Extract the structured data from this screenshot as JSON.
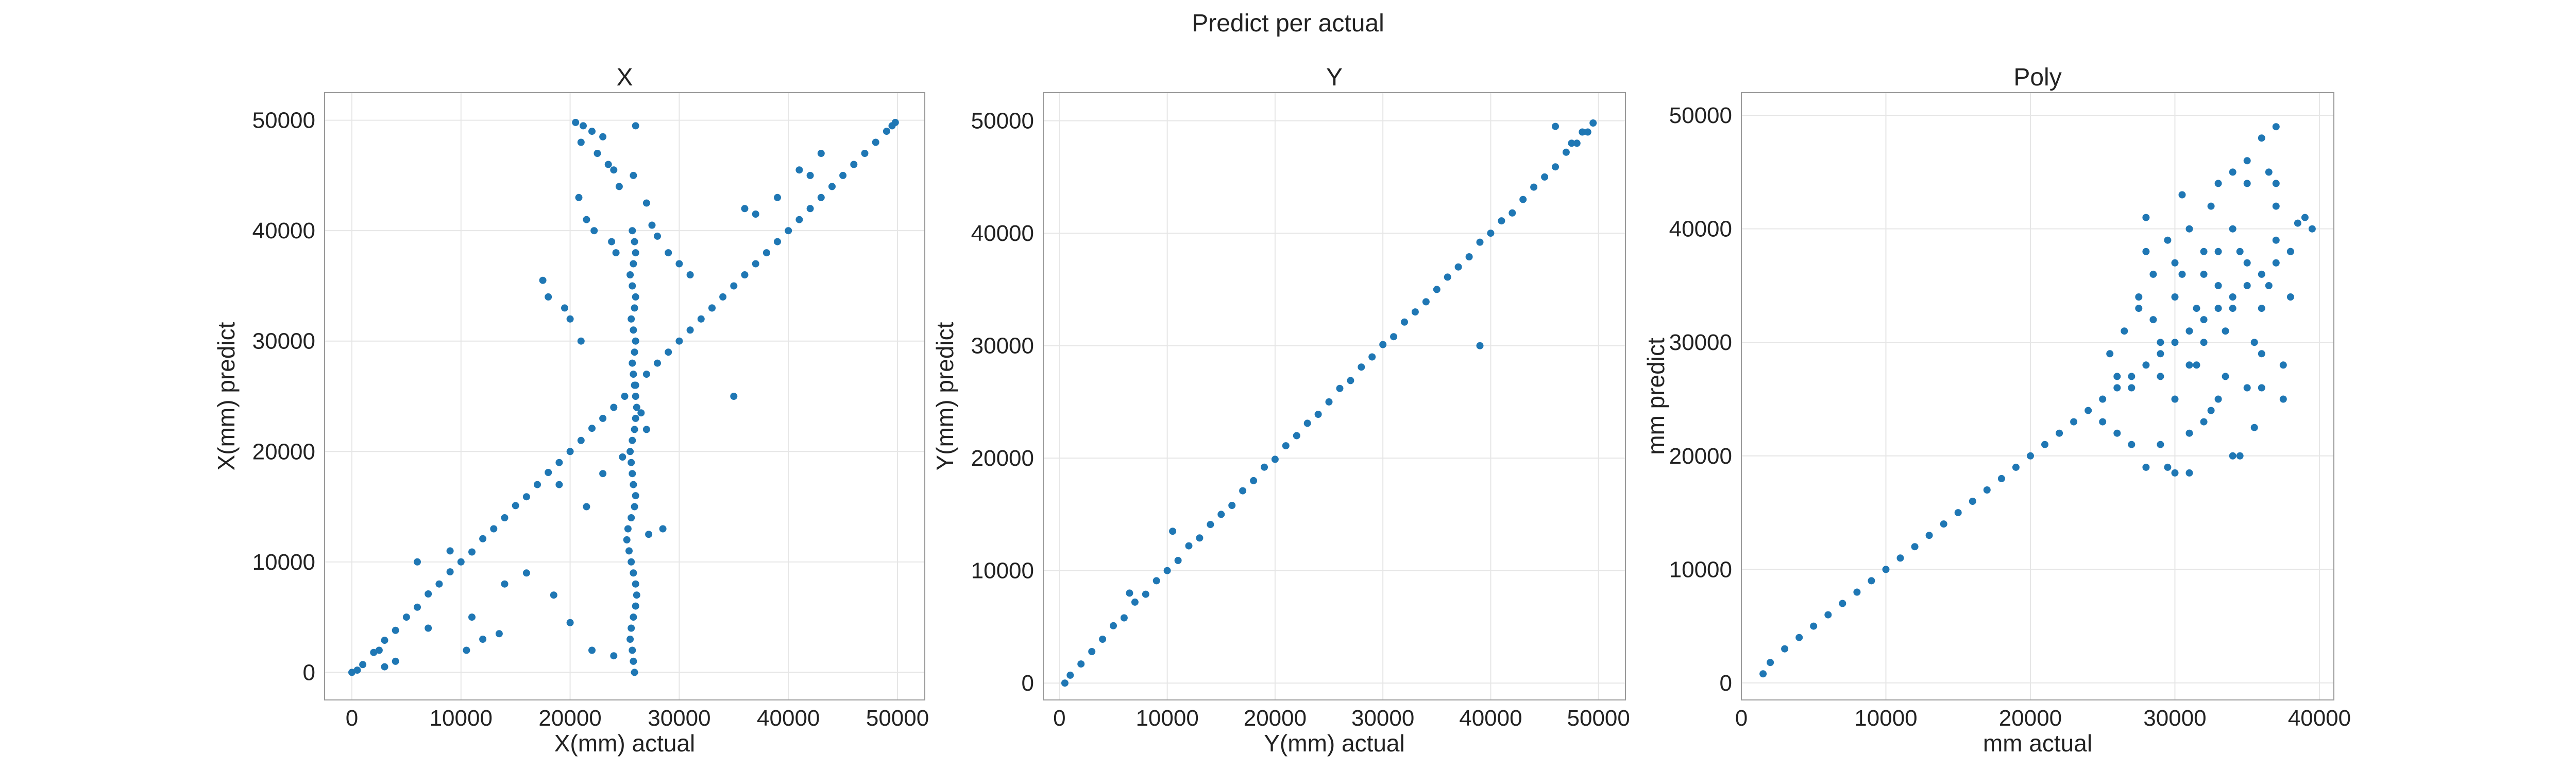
{
  "figure": {
    "suptitle": "Predict per actual",
    "point_color": "#1f77b4"
  },
  "chart_data": [
    {
      "type": "scatter",
      "title": "X",
      "xlabel": "X(mm) actual",
      "ylabel": "X(mm) predict",
      "xlim": [
        -2500,
        52500
      ],
      "ylim": [
        -2500,
        52500
      ],
      "xticks": [
        0,
        10000,
        20000,
        30000,
        40000,
        50000
      ],
      "yticks": [
        0,
        10000,
        20000,
        30000,
        40000,
        50000
      ],
      "grid": true,
      "series": [
        {
          "x": [
            0,
            500,
            1000,
            2000,
            3000,
            4000,
            5000,
            6000,
            7000,
            8000,
            9000,
            10000,
            11000,
            12000,
            13000,
            14000,
            15000,
            16000,
            17000,
            18000,
            19000,
            20000,
            21000,
            22000,
            23000,
            24000,
            25000,
            26000,
            27000,
            28000,
            29000,
            30000,
            31000,
            32000,
            33000,
            34000,
            35000,
            36000,
            37000,
            38000,
            39000,
            40000,
            41000,
            42000,
            43000,
            44000,
            45000,
            46000,
            47000,
            48000,
            49000,
            49500,
            49800
          ],
          "y": [
            0,
            200,
            700,
            1800,
            2900,
            3800,
            5000,
            5900,
            7100,
            8000,
            9100,
            10000,
            10900,
            12100,
            13000,
            14000,
            15100,
            15900,
            17000,
            18100,
            19000,
            20000,
            21000,
            22100,
            23000,
            24000,
            25000,
            26000,
            27000,
            28000,
            29000,
            30000,
            31000,
            32000,
            33000,
            34000,
            35000,
            36000,
            37000,
            38000,
            39000,
            40000,
            41000,
            42000,
            43000,
            44000,
            45000,
            46000,
            47000,
            48000,
            49000,
            49500,
            49800
          ]
        },
        {
          "x": [
            25900,
            25800,
            25700,
            25500,
            25600,
            25800,
            26000,
            26100,
            26000,
            25800,
            25600,
            25400,
            25200,
            25300,
            25600,
            25900,
            26000,
            25800,
            25700,
            25600,
            25500,
            25700,
            25900,
            26000,
            26100,
            26000,
            25900,
            25800,
            25700,
            25900,
            26000,
            25800,
            25600,
            25900,
            26000,
            25700,
            25500,
            25800,
            26000,
            25900,
            25700,
            25800,
            26000
          ],
          "y": [
            0,
            1000,
            2000,
            3000,
            4000,
            5000,
            6000,
            7000,
            8000,
            9000,
            10000,
            11000,
            12000,
            13000,
            14000,
            15000,
            16000,
            17000,
            18000,
            19000,
            20000,
            21000,
            22000,
            23000,
            24000,
            25000,
            26000,
            27000,
            28000,
            29000,
            30000,
            31000,
            32000,
            33000,
            34000,
            35000,
            36000,
            37000,
            38000,
            39000,
            40000,
            45000,
            49500
          ]
        },
        {
          "x": [
            20500,
            21200,
            22000,
            23000,
            21000,
            22500,
            23500,
            24000,
            24500,
            20800,
            21500,
            22200,
            23800,
            24200,
            17500,
            18000,
            19500,
            20000,
            21000,
            27000,
            27500,
            28000,
            29000,
            30000,
            31000,
            33000,
            35000,
            36000,
            37000,
            39000,
            41000,
            42000,
            20000,
            22000,
            24000,
            12000,
            13500,
            11000,
            10500,
            14000,
            6000,
            7000,
            4000,
            3000,
            2500,
            9000,
            16000,
            18500,
            19000,
            21500,
            23000,
            24800,
            27200,
            28500,
            43000,
            27000,
            26500
          ],
          "y": [
            49800,
            49500,
            49000,
            48500,
            48000,
            47000,
            46000,
            45500,
            44000,
            43000,
            41000,
            40000,
            39000,
            38000,
            35500,
            34000,
            33000,
            32000,
            30000,
            42500,
            40500,
            39500,
            38000,
            37000,
            36000,
            33000,
            25000,
            42000,
            41500,
            43000,
            45500,
            45000,
            4500,
            2000,
            1500,
            3000,
            3500,
            5000,
            2000,
            8000,
            10000,
            4000,
            1000,
            500,
            2000,
            11000,
            9000,
            7000,
            17000,
            15000,
            18000,
            19500,
            12500,
            13000,
            47000,
            22000,
            23500
          ]
        }
      ]
    },
    {
      "type": "scatter",
      "title": "Y",
      "xlabel": "Y(mm) actual",
      "ylabel": "Y(mm) predict",
      "xlim": [
        -1500,
        52500
      ],
      "ylim": [
        -1500,
        52500
      ],
      "xticks": [
        0,
        10000,
        20000,
        30000,
        40000,
        50000
      ],
      "yticks": [
        0,
        10000,
        20000,
        30000,
        40000,
        50000
      ],
      "grid": true,
      "series": [
        {
          "x": [
            500,
            1000,
            2000,
            3000,
            4000,
            5000,
            6000,
            7000,
            8000,
            9000,
            10000,
            11000,
            12000,
            13000,
            14000,
            15000,
            16000,
            17000,
            18000,
            19000,
            20000,
            21000,
            22000,
            23000,
            24000,
            25000,
            26000,
            27000,
            28000,
            29000,
            30000,
            31000,
            32000,
            33000,
            34000,
            35000,
            36000,
            37000,
            38000,
            39000,
            40000,
            41000,
            42000,
            43000,
            44000,
            45000,
            46000,
            47000,
            48000,
            49000,
            49500
          ],
          "y": [
            0,
            700,
            1700,
            2800,
            3900,
            5100,
            5800,
            7200,
            7900,
            9100,
            10000,
            10900,
            12200,
            12900,
            14100,
            15000,
            15800,
            17100,
            18000,
            19200,
            19900,
            21100,
            22000,
            23100,
            23900,
            25000,
            26200,
            26900,
            28100,
            29000,
            30100,
            30800,
            32100,
            33000,
            33900,
            35000,
            36100,
            37000,
            37900,
            39200,
            40000,
            41100,
            41800,
            43000,
            44100,
            45000,
            45900,
            47200,
            48000,
            49000,
            49800
          ]
        },
        {
          "x": [
            39000,
            10500,
            6500,
            46000,
            47500,
            48500
          ],
          "y": [
            30000,
            13500,
            8000,
            49500,
            48000,
            49000
          ]
        }
      ]
    },
    {
      "type": "scatter",
      "title": "Poly",
      "xlabel": "mm actual",
      "ylabel": "mm predict",
      "xlim": [
        0,
        41000
      ],
      "ylim": [
        -1500,
        52000
      ],
      "xticks": [
        0,
        10000,
        20000,
        30000,
        40000
      ],
      "yticks": [
        0,
        10000,
        20000,
        30000,
        40000,
        50000
      ],
      "grid": true,
      "series": [
        {
          "x": [
            1500,
            2000,
            3000,
            4000,
            5000,
            6000,
            7000,
            8000,
            9000,
            10000,
            11000,
            12000,
            13000,
            14000,
            15000,
            16000,
            17000,
            18000,
            19000,
            20000,
            21000,
            22000,
            23000,
            24000,
            25000,
            26000,
            27000,
            28000,
            29000,
            30000,
            31000,
            32000,
            33000,
            34000,
            35000,
            36000,
            37000,
            38000
          ],
          "y": [
            800,
            1800,
            3000,
            4000,
            5000,
            6000,
            7000,
            8000,
            9000,
            10000,
            11000,
            12000,
            13000,
            14000,
            15000,
            16000,
            17000,
            18000,
            19000,
            20000,
            21000,
            22000,
            23000,
            24000,
            25000,
            26000,
            27000,
            28000,
            29000,
            30000,
            31000,
            32000,
            33000,
            34000,
            35000,
            36000,
            37000,
            38000
          ]
        },
        {
          "x": [
            25000,
            25500,
            26000,
            26500,
            27000,
            27500,
            28000,
            28500,
            29000,
            29500,
            30000,
            30500,
            31000,
            31500,
            32000,
            32500,
            33000,
            33500,
            34000,
            34500,
            35000,
            35500,
            36000,
            36500,
            37000,
            37500,
            38000,
            38500,
            39000,
            27000,
            28000,
            29000,
            30000,
            31000,
            32000,
            33000,
            34000,
            35000,
            36000,
            37000,
            28500,
            29500,
            30500,
            31500,
            32500,
            33500,
            34500,
            35500,
            36500,
            37500,
            26000,
            27500,
            29000,
            30000,
            31000,
            32000,
            33000,
            34000,
            35000,
            36000,
            37000,
            38000,
            39500,
            30000,
            32000,
            34000,
            36000,
            28000,
            31000,
            33000,
            35000,
            37000
          ],
          "y": [
            23000,
            29000,
            22000,
            31000,
            26000,
            34000,
            19000,
            36000,
            21000,
            39000,
            25000,
            43000,
            18500,
            33000,
            38000,
            24000,
            44000,
            27000,
            40000,
            20000,
            46000,
            30000,
            48000,
            35000,
            49000,
            28000,
            38000,
            40500,
            41000,
            21000,
            38000,
            27000,
            18500,
            40000,
            23000,
            35000,
            20000,
            44000,
            26000,
            42000,
            32000,
            19000,
            36000,
            28000,
            42000,
            31000,
            38000,
            22500,
            45000,
            25000,
            27000,
            33000,
            30000,
            34000,
            28000,
            36000,
            25000,
            33000,
            37000,
            29000,
            39000,
            34000,
            40000,
            37000,
            30000,
            45000,
            33000,
            41000,
            22000,
            38000,
            26000,
            44000
          ]
        }
      ]
    }
  ]
}
